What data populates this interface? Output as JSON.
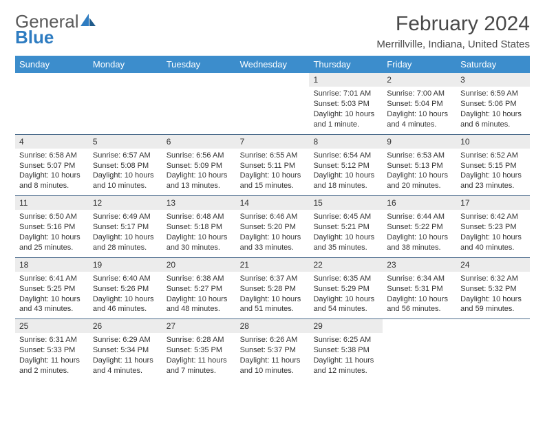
{
  "logo": {
    "text_gray": "General",
    "text_blue": "Blue"
  },
  "title": "February 2024",
  "location": "Merrillville, Indiana, United States",
  "colors": {
    "header_bg": "#3c8dcc",
    "header_text": "#ffffff",
    "daynum_bg": "#ececec",
    "row_border": "#4a6a8a",
    "text": "#333333",
    "title_text": "#4a4a4a",
    "logo_gray": "#5a5a5a",
    "logo_blue": "#2e7cc1"
  },
  "weekdays": [
    "Sunday",
    "Monday",
    "Tuesday",
    "Wednesday",
    "Thursday",
    "Friday",
    "Saturday"
  ],
  "grid": {
    "first_weekday_index": 4,
    "days_in_month": 29
  },
  "days": {
    "1": {
      "sunrise": "Sunrise: 7:01 AM",
      "sunset": "Sunset: 5:03 PM",
      "daylight1": "Daylight: 10 hours",
      "daylight2": "and 1 minute."
    },
    "2": {
      "sunrise": "Sunrise: 7:00 AM",
      "sunset": "Sunset: 5:04 PM",
      "daylight1": "Daylight: 10 hours",
      "daylight2": "and 4 minutes."
    },
    "3": {
      "sunrise": "Sunrise: 6:59 AM",
      "sunset": "Sunset: 5:06 PM",
      "daylight1": "Daylight: 10 hours",
      "daylight2": "and 6 minutes."
    },
    "4": {
      "sunrise": "Sunrise: 6:58 AM",
      "sunset": "Sunset: 5:07 PM",
      "daylight1": "Daylight: 10 hours",
      "daylight2": "and 8 minutes."
    },
    "5": {
      "sunrise": "Sunrise: 6:57 AM",
      "sunset": "Sunset: 5:08 PM",
      "daylight1": "Daylight: 10 hours",
      "daylight2": "and 10 minutes."
    },
    "6": {
      "sunrise": "Sunrise: 6:56 AM",
      "sunset": "Sunset: 5:09 PM",
      "daylight1": "Daylight: 10 hours",
      "daylight2": "and 13 minutes."
    },
    "7": {
      "sunrise": "Sunrise: 6:55 AM",
      "sunset": "Sunset: 5:11 PM",
      "daylight1": "Daylight: 10 hours",
      "daylight2": "and 15 minutes."
    },
    "8": {
      "sunrise": "Sunrise: 6:54 AM",
      "sunset": "Sunset: 5:12 PM",
      "daylight1": "Daylight: 10 hours",
      "daylight2": "and 18 minutes."
    },
    "9": {
      "sunrise": "Sunrise: 6:53 AM",
      "sunset": "Sunset: 5:13 PM",
      "daylight1": "Daylight: 10 hours",
      "daylight2": "and 20 minutes."
    },
    "10": {
      "sunrise": "Sunrise: 6:52 AM",
      "sunset": "Sunset: 5:15 PM",
      "daylight1": "Daylight: 10 hours",
      "daylight2": "and 23 minutes."
    },
    "11": {
      "sunrise": "Sunrise: 6:50 AM",
      "sunset": "Sunset: 5:16 PM",
      "daylight1": "Daylight: 10 hours",
      "daylight2": "and 25 minutes."
    },
    "12": {
      "sunrise": "Sunrise: 6:49 AM",
      "sunset": "Sunset: 5:17 PM",
      "daylight1": "Daylight: 10 hours",
      "daylight2": "and 28 minutes."
    },
    "13": {
      "sunrise": "Sunrise: 6:48 AM",
      "sunset": "Sunset: 5:18 PM",
      "daylight1": "Daylight: 10 hours",
      "daylight2": "and 30 minutes."
    },
    "14": {
      "sunrise": "Sunrise: 6:46 AM",
      "sunset": "Sunset: 5:20 PM",
      "daylight1": "Daylight: 10 hours",
      "daylight2": "and 33 minutes."
    },
    "15": {
      "sunrise": "Sunrise: 6:45 AM",
      "sunset": "Sunset: 5:21 PM",
      "daylight1": "Daylight: 10 hours",
      "daylight2": "and 35 minutes."
    },
    "16": {
      "sunrise": "Sunrise: 6:44 AM",
      "sunset": "Sunset: 5:22 PM",
      "daylight1": "Daylight: 10 hours",
      "daylight2": "and 38 minutes."
    },
    "17": {
      "sunrise": "Sunrise: 6:42 AM",
      "sunset": "Sunset: 5:23 PM",
      "daylight1": "Daylight: 10 hours",
      "daylight2": "and 40 minutes."
    },
    "18": {
      "sunrise": "Sunrise: 6:41 AM",
      "sunset": "Sunset: 5:25 PM",
      "daylight1": "Daylight: 10 hours",
      "daylight2": "and 43 minutes."
    },
    "19": {
      "sunrise": "Sunrise: 6:40 AM",
      "sunset": "Sunset: 5:26 PM",
      "daylight1": "Daylight: 10 hours",
      "daylight2": "and 46 minutes."
    },
    "20": {
      "sunrise": "Sunrise: 6:38 AM",
      "sunset": "Sunset: 5:27 PM",
      "daylight1": "Daylight: 10 hours",
      "daylight2": "and 48 minutes."
    },
    "21": {
      "sunrise": "Sunrise: 6:37 AM",
      "sunset": "Sunset: 5:28 PM",
      "daylight1": "Daylight: 10 hours",
      "daylight2": "and 51 minutes."
    },
    "22": {
      "sunrise": "Sunrise: 6:35 AM",
      "sunset": "Sunset: 5:29 PM",
      "daylight1": "Daylight: 10 hours",
      "daylight2": "and 54 minutes."
    },
    "23": {
      "sunrise": "Sunrise: 6:34 AM",
      "sunset": "Sunset: 5:31 PM",
      "daylight1": "Daylight: 10 hours",
      "daylight2": "and 56 minutes."
    },
    "24": {
      "sunrise": "Sunrise: 6:32 AM",
      "sunset": "Sunset: 5:32 PM",
      "daylight1": "Daylight: 10 hours",
      "daylight2": "and 59 minutes."
    },
    "25": {
      "sunrise": "Sunrise: 6:31 AM",
      "sunset": "Sunset: 5:33 PM",
      "daylight1": "Daylight: 11 hours",
      "daylight2": "and 2 minutes."
    },
    "26": {
      "sunrise": "Sunrise: 6:29 AM",
      "sunset": "Sunset: 5:34 PM",
      "daylight1": "Daylight: 11 hours",
      "daylight2": "and 4 minutes."
    },
    "27": {
      "sunrise": "Sunrise: 6:28 AM",
      "sunset": "Sunset: 5:35 PM",
      "daylight1": "Daylight: 11 hours",
      "daylight2": "and 7 minutes."
    },
    "28": {
      "sunrise": "Sunrise: 6:26 AM",
      "sunset": "Sunset: 5:37 PM",
      "daylight1": "Daylight: 11 hours",
      "daylight2": "and 10 minutes."
    },
    "29": {
      "sunrise": "Sunrise: 6:25 AM",
      "sunset": "Sunset: 5:38 PM",
      "daylight1": "Daylight: 11 hours",
      "daylight2": "and 12 minutes."
    }
  }
}
